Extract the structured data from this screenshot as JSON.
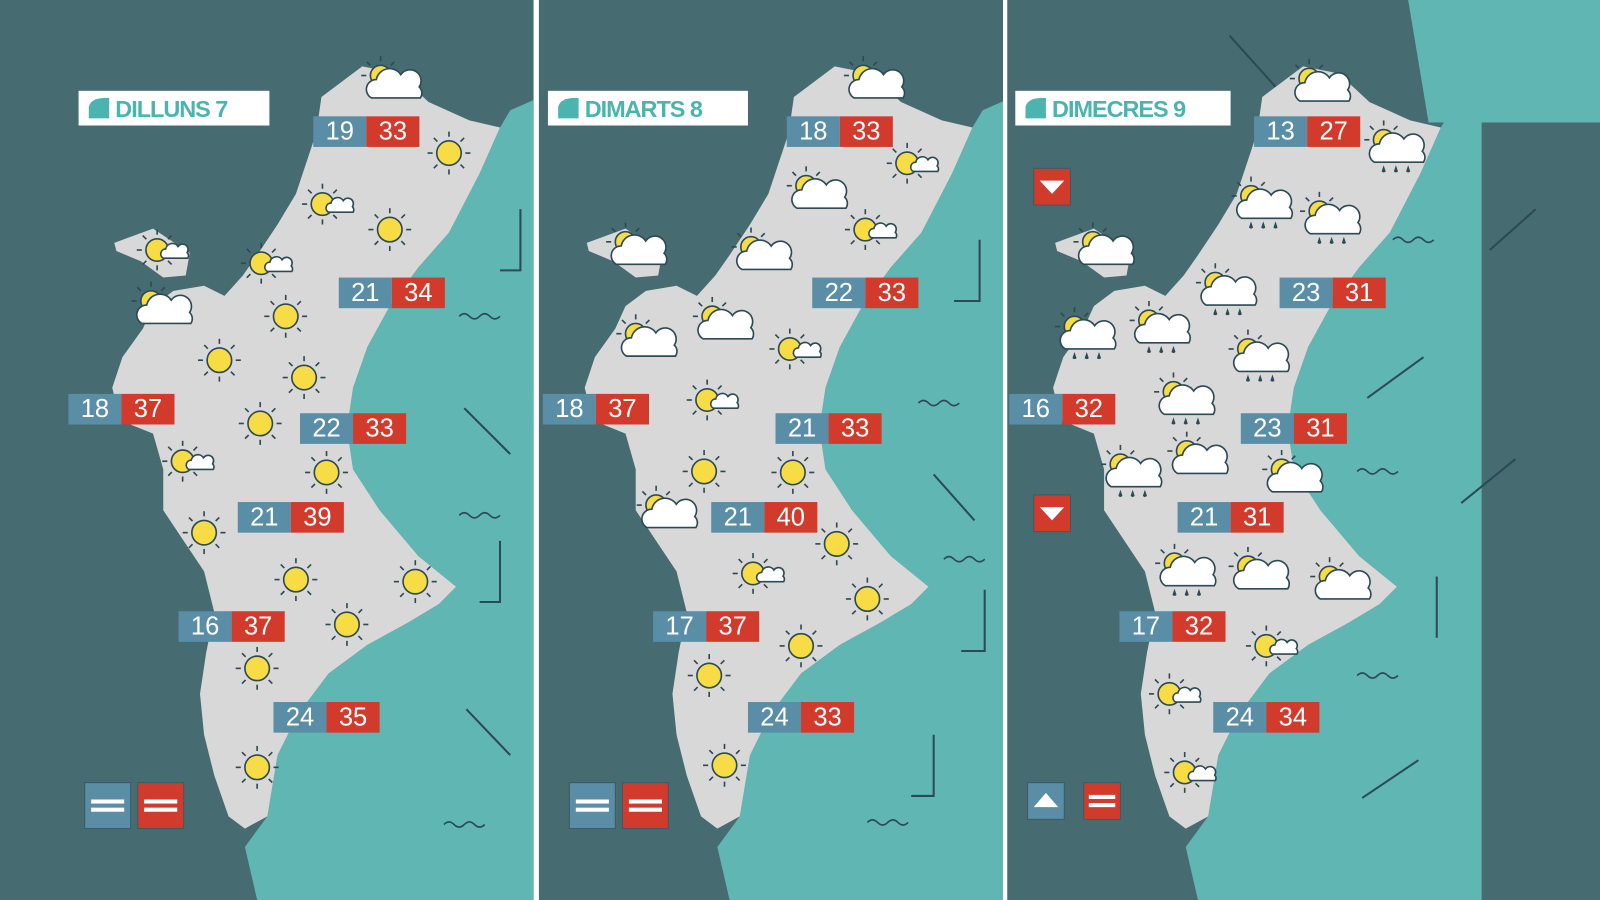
{
  "panels": [
    {
      "day": "DILLUNS 7",
      "temps": [
        {
          "min": 19,
          "max": 33
        },
        {
          "min": 21,
          "max": 34
        },
        {
          "min": 18,
          "max": 37
        },
        {
          "min": 22,
          "max": 33
        },
        {
          "min": 21,
          "max": 39
        },
        {
          "min": 16,
          "max": 37
        },
        {
          "min": 24,
          "max": 35
        }
      ]
    },
    {
      "day": "DIMARTS 8",
      "temps": [
        {
          "min": 18,
          "max": 33
        },
        {
          "min": 22,
          "max": 33
        },
        {
          "min": 18,
          "max": 37
        },
        {
          "min": 21,
          "max": 33
        },
        {
          "min": 21,
          "max": 40
        },
        {
          "min": 17,
          "max": 37
        },
        {
          "min": 24,
          "max": 33
        }
      ]
    },
    {
      "day": "DIMECRES 9",
      "temps": [
        {
          "min": 13,
          "max": 27
        },
        {
          "min": 23,
          "max": 31
        },
        {
          "min": 16,
          "max": 32
        },
        {
          "min": 23,
          "max": 31
        },
        {
          "min": 21,
          "max": 31
        },
        {
          "min": 17,
          "max": 32
        },
        {
          "min": 24,
          "max": 34
        }
      ]
    }
  ]
}
